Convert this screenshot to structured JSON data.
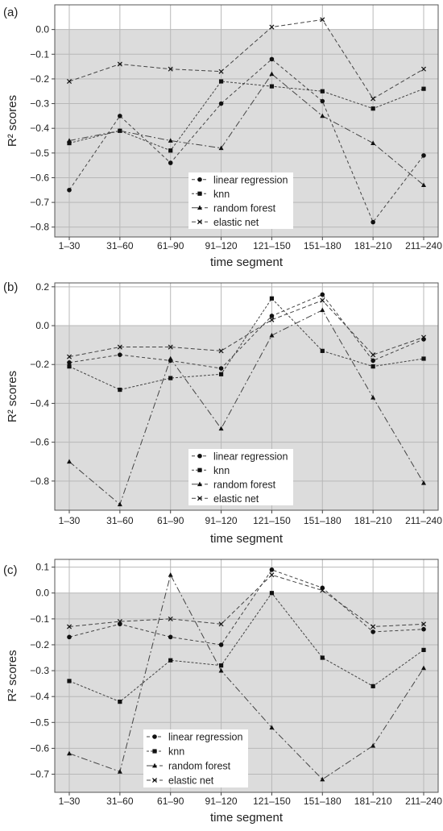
{
  "chart_data": [
    {
      "type": "line",
      "panel_label": "(a)",
      "xlabel": "time segment",
      "ylabel": "R² scores",
      "categories": [
        "1–30",
        "31–60",
        "61–90",
        "91–120",
        "121–150",
        "151–180",
        "181–210",
        "211–240"
      ],
      "ylim": [
        -0.84,
        0.1
      ],
      "yticks": [
        0.0,
        -0.1,
        -0.2,
        -0.3,
        -0.4,
        -0.5,
        -0.6,
        -0.7,
        -0.8
      ],
      "ytick_labels": [
        "0.0",
        "−0.1",
        "−0.2",
        "−0.3",
        "−0.4",
        "−0.5",
        "−0.6",
        "−0.7",
        "−0.8"
      ],
      "shade_below": 0,
      "grid": true,
      "legend_position": "bottom-center",
      "series": [
        {
          "name": "linear regression",
          "marker": "circle",
          "dash": "4,3",
          "values": [
            -0.65,
            -0.35,
            -0.54,
            -0.3,
            -0.12,
            -0.29,
            -0.78,
            -0.51
          ]
        },
        {
          "name": "knn",
          "marker": "square",
          "dash": "3,2",
          "values": [
            -0.46,
            -0.41,
            -0.49,
            -0.21,
            -0.23,
            -0.25,
            -0.32,
            -0.24
          ]
        },
        {
          "name": "random forest",
          "marker": "triangle",
          "dash": "8,3,2,3",
          "values": [
            -0.45,
            -0.41,
            -0.45,
            -0.48,
            -0.18,
            -0.35,
            -0.46,
            -0.63
          ]
        },
        {
          "name": "elastic net",
          "marker": "cross",
          "dash": "5,3",
          "values": [
            -0.21,
            -0.14,
            -0.16,
            -0.17,
            0.01,
            0.04,
            -0.28,
            -0.16
          ]
        }
      ]
    },
    {
      "type": "line",
      "panel_label": "(b)",
      "xlabel": "time segment",
      "ylabel": "R² scores",
      "categories": [
        "1–30",
        "31–60",
        "61–90",
        "91–120",
        "121–150",
        "151–180",
        "181–210",
        "211–240"
      ],
      "ylim": [
        -0.95,
        0.22
      ],
      "yticks": [
        0.2,
        0.0,
        -0.2,
        -0.4,
        -0.6,
        -0.8
      ],
      "ytick_labels": [
        "0.2",
        "0.0",
        "−0.2",
        "−0.4",
        "−0.6",
        "−0.8"
      ],
      "shade_below": 0,
      "grid": true,
      "legend_position": "bottom-center",
      "series": [
        {
          "name": "linear regression",
          "marker": "circle",
          "dash": "4,3",
          "values": [
            -0.19,
            -0.15,
            -0.18,
            -0.22,
            0.05,
            0.16,
            -0.18,
            -0.07
          ]
        },
        {
          "name": "knn",
          "marker": "square",
          "dash": "3,2",
          "values": [
            -0.21,
            -0.33,
            -0.27,
            -0.25,
            0.14,
            -0.13,
            -0.21,
            -0.17
          ]
        },
        {
          "name": "random forest",
          "marker": "triangle",
          "dash": "8,3,2,3",
          "values": [
            -0.7,
            -0.92,
            -0.17,
            -0.53,
            -0.05,
            0.08,
            -0.37,
            -0.81
          ]
        },
        {
          "name": "elastic net",
          "marker": "cross",
          "dash": "5,3",
          "values": [
            -0.16,
            -0.11,
            -0.11,
            -0.13,
            0.03,
            0.13,
            -0.15,
            -0.06
          ]
        }
      ]
    },
    {
      "type": "line",
      "panel_label": "(c)",
      "xlabel": "time segment",
      "ylabel": "R² scores",
      "categories": [
        "1–30",
        "31–60",
        "61–90",
        "91–120",
        "121–150",
        "151–180",
        "181–210",
        "211–240"
      ],
      "ylim": [
        -0.77,
        0.13
      ],
      "yticks": [
        0.1,
        0.0,
        -0.1,
        -0.2,
        -0.3,
        -0.4,
        -0.5,
        -0.6,
        -0.7
      ],
      "ytick_labels": [
        "0.1",
        "0.0",
        "−0.1",
        "−0.2",
        "−0.3",
        "−0.4",
        "−0.5",
        "−0.6",
        "−0.7"
      ],
      "shade_below": 0,
      "grid": true,
      "legend_position": "bottom-left",
      "series": [
        {
          "name": "linear regression",
          "marker": "circle",
          "dash": "4,3",
          "values": [
            -0.17,
            -0.12,
            -0.17,
            -0.2,
            0.09,
            0.02,
            -0.15,
            -0.14
          ]
        },
        {
          "name": "knn",
          "marker": "square",
          "dash": "3,2",
          "values": [
            -0.34,
            -0.42,
            -0.26,
            -0.28,
            0.0,
            -0.25,
            -0.36,
            -0.22
          ]
        },
        {
          "name": "random forest",
          "marker": "triangle",
          "dash": "8,3,2,3",
          "values": [
            -0.62,
            -0.69,
            0.07,
            -0.3,
            -0.52,
            -0.72,
            -0.59,
            -0.29
          ]
        },
        {
          "name": "elastic net",
          "marker": "cross",
          "dash": "5,3",
          "values": [
            -0.13,
            -0.11,
            -0.1,
            -0.12,
            0.07,
            0.01,
            -0.13,
            -0.12
          ]
        }
      ]
    }
  ]
}
